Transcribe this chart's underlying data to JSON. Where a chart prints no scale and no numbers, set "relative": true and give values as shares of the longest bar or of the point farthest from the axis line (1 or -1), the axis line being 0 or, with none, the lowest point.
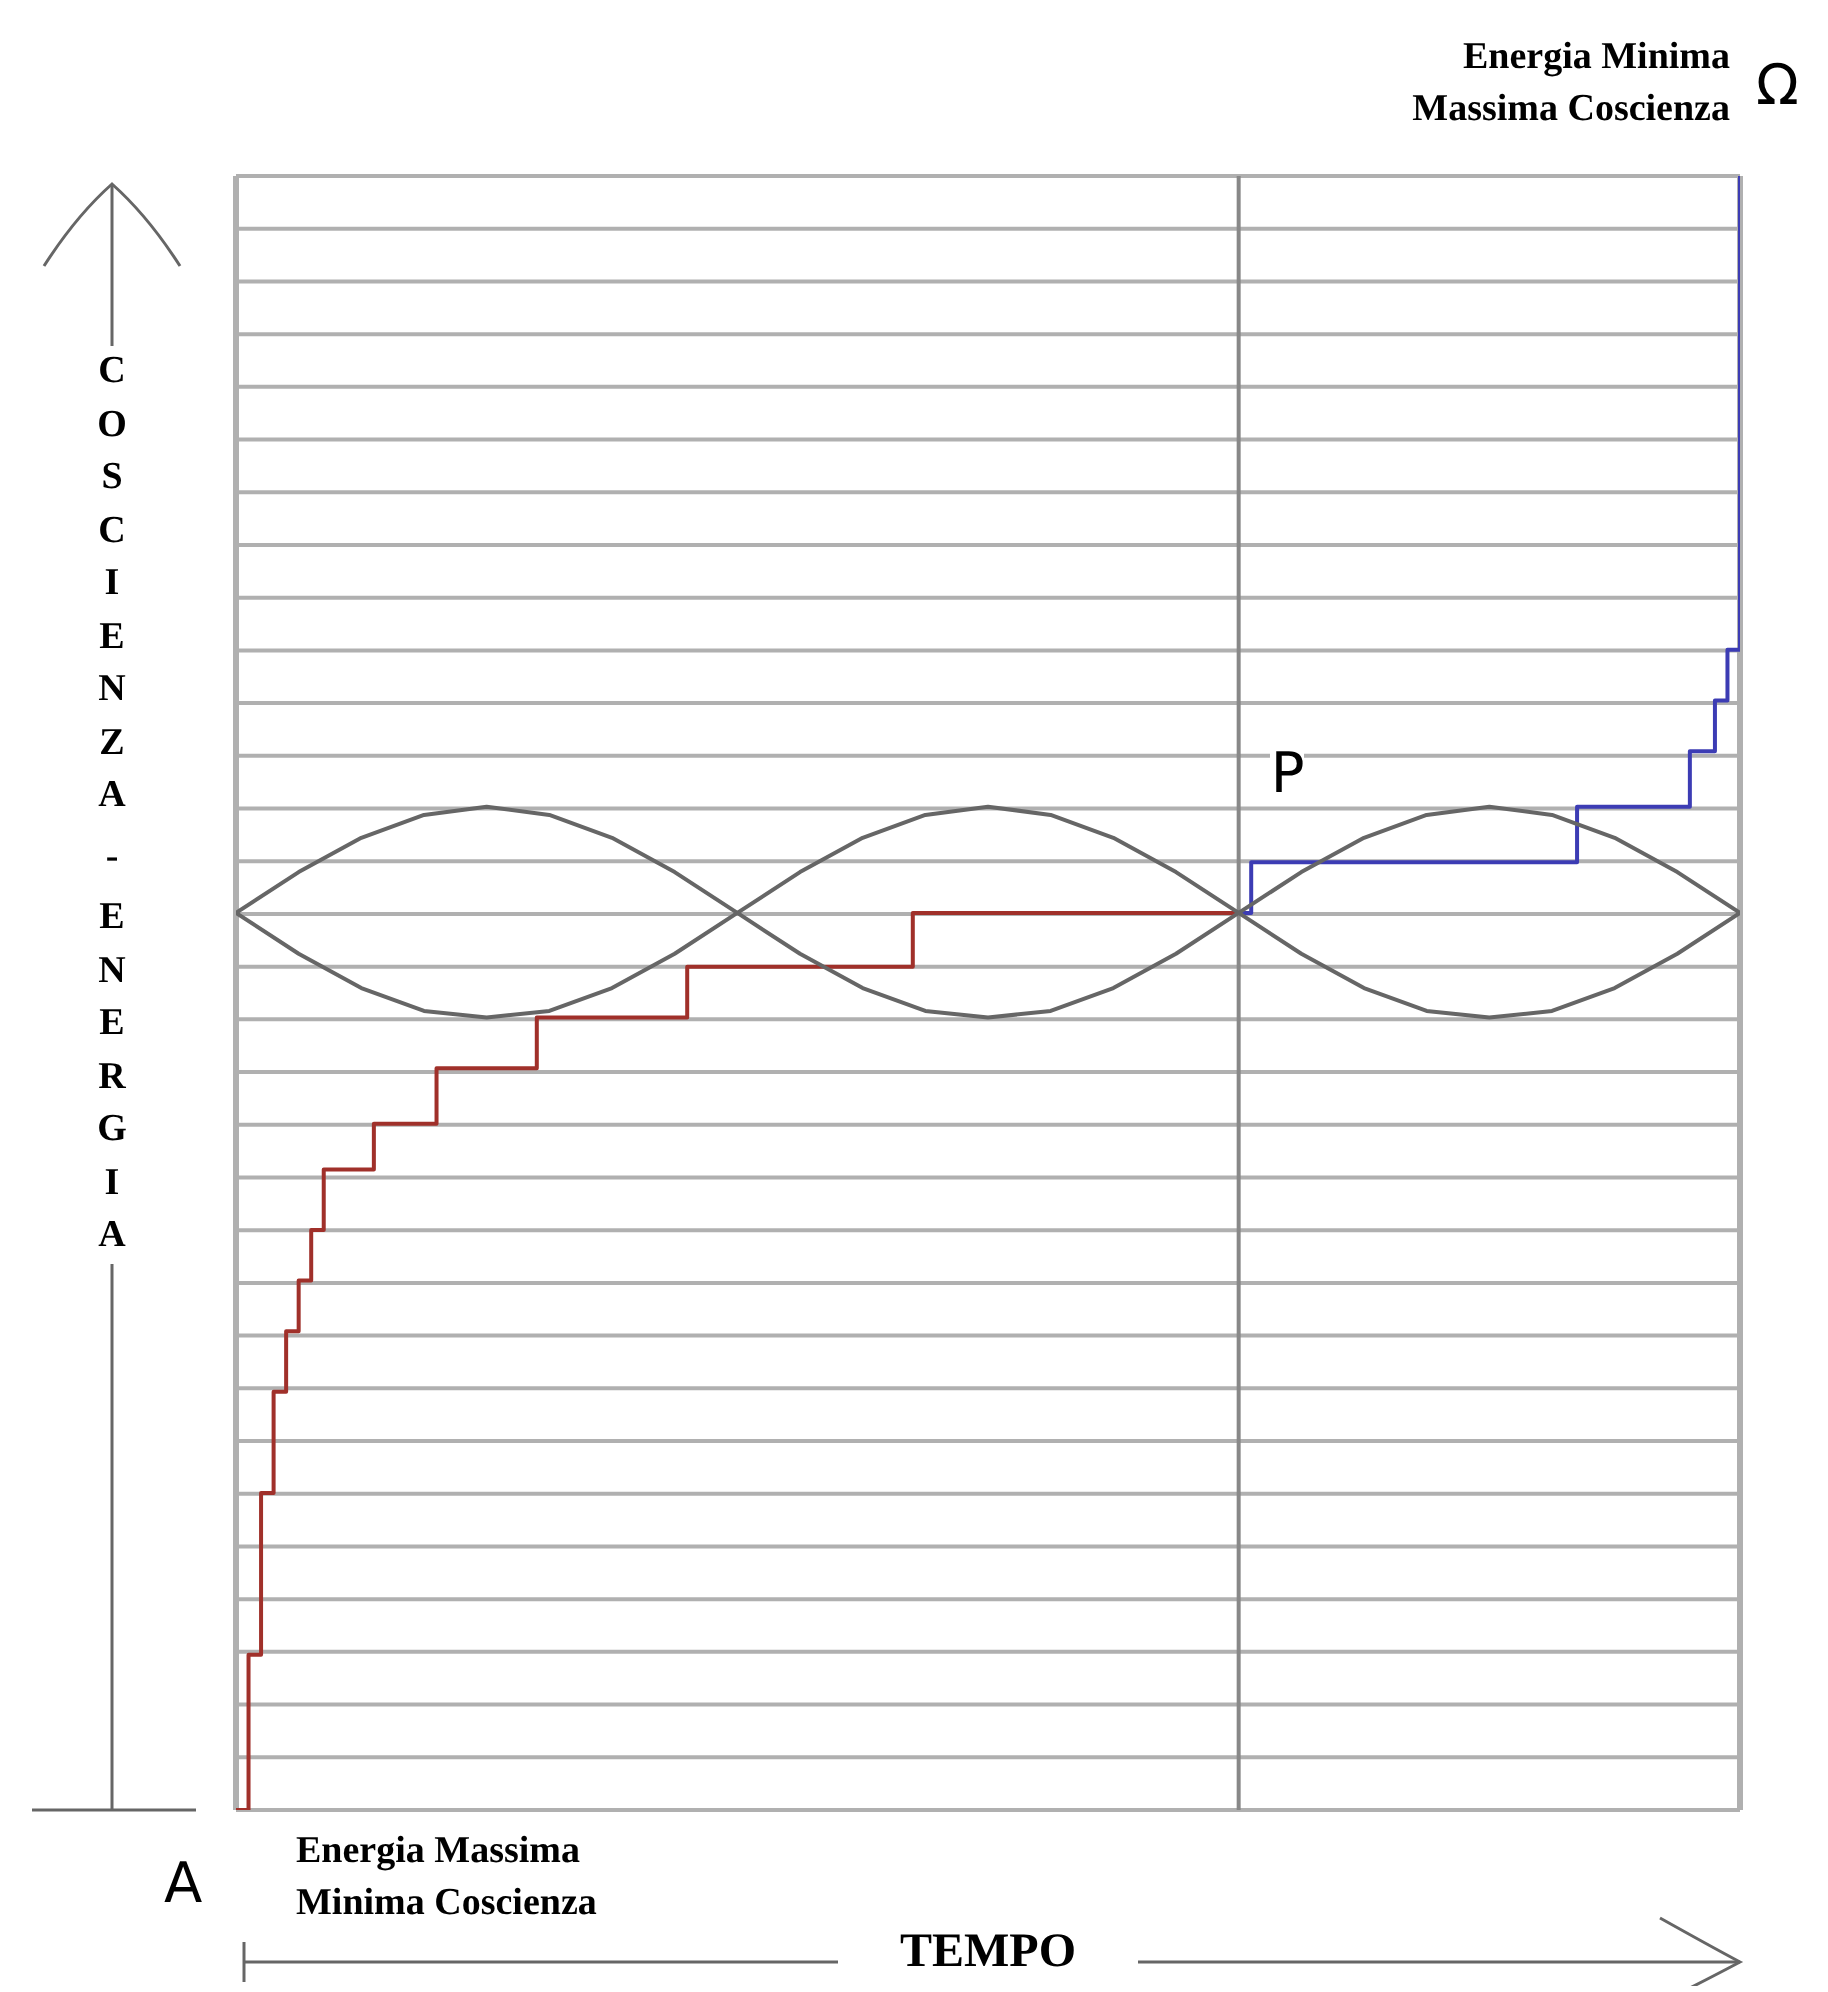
{
  "chart_data": {
    "type": "step",
    "relative": true,
    "xlabel": "TEMPO",
    "ylabel": "COSCIENZA - ENERGIA",
    "grid": "y",
    "marker": "none",
    "line_style": "solid",
    "categories": [
      null,
      null,
      null,
      null,
      null,
      null,
      null,
      null,
      null,
      null,
      null,
      null,
      null,
      null,
      null,
      null,
      null,
      null,
      null,
      null,
      null,
      null,
      null,
      null,
      null,
      null,
      null,
      null,
      null,
      null,
      null,
      null,
      null,
      null,
      null,
      null,
      null,
      null,
      null,
      null,
      null,
      null,
      null,
      null,
      null,
      null,
      null,
      null,
      null,
      null,
      null,
      null,
      null,
      null,
      null,
      null,
      null,
      null,
      null,
      null,
      null,
      null,
      null,
      null,
      null,
      null,
      null,
      null,
      null,
      null,
      null,
      null,
      null,
      null,
      null,
      null,
      null,
      null,
      null,
      null,
      null,
      null,
      null,
      null,
      null,
      null,
      null,
      null,
      null,
      null,
      null,
      null,
      null,
      null,
      null,
      null,
      null,
      null,
      null,
      null,
      null,
      null,
      null,
      null,
      null,
      null,
      null,
      null,
      null,
      null,
      null,
      null,
      null,
      null,
      null,
      null,
      null,
      null,
      null,
      null,
      null
    ],
    "series": [
      {
        "color": "#a0302a",
        "values": [
          0,
          0.095,
          0.194,
          0.256,
          0.293,
          0.324,
          0.355,
          0.392,
          null,
          null,
          null,
          0.42,
          null,
          null,
          null,
          null,
          0.454,
          null,
          null,
          null,
          null,
          null,
          null,
          null,
          0.485,
          null,
          null,
          null,
          null,
          null,
          null,
          null,
          null,
          null,
          null,
          null,
          0.516,
          null,
          null,
          null,
          null,
          null,
          null,
          null,
          null,
          null,
          null,
          null,
          null,
          null,
          null,
          null,
          null,
          null,
          0.549,
          null,
          null,
          null,
          null,
          null,
          null,
          null,
          null,
          null,
          null,
          null,
          null,
          null,
          null,
          null,
          null,
          null,
          null,
          null,
          null,
          null,
          null,
          null,
          null,
          null,
          0.549,
          null,
          null,
          null,
          null,
          null,
          null,
          null,
          null,
          null,
          null,
          null,
          null,
          null,
          null,
          null,
          null,
          null,
          null,
          null,
          null,
          null,
          null,
          null,
          null,
          null,
          null,
          null,
          null,
          null,
          null,
          null,
          null,
          null,
          null,
          null,
          null,
          null,
          null,
          null,
          null
        ]
      },
      {
        "color": "#3c3cb4",
        "values": [
          null,
          null,
          null,
          null,
          null,
          null,
          null,
          null,
          null,
          null,
          null,
          null,
          null,
          null,
          null,
          null,
          null,
          null,
          null,
          null,
          null,
          null,
          null,
          null,
          null,
          null,
          null,
          null,
          null,
          null,
          null,
          null,
          null,
          null,
          null,
          null,
          null,
          null,
          null,
          null,
          null,
          null,
          null,
          null,
          null,
          null,
          null,
          null,
          null,
          null,
          null,
          null,
          null,
          null,
          null,
          null,
          null,
          null,
          null,
          null,
          null,
          null,
          null,
          null,
          null,
          null,
          null,
          null,
          null,
          null,
          null,
          null,
          null,
          null,
          null,
          null,
          null,
          null,
          null,
          null,
          0.549,
          0.58,
          null,
          null,
          null,
          null,
          null,
          null,
          null,
          null,
          null,
          null,
          null,
          null,
          null,
          null,
          null,
          null,
          null,
          null,
          null,
          null,
          null,
          null,
          null,
          null,
          null,
          0.614,
          null,
          null,
          null,
          null,
          null,
          null,
          null,
          null,
          0.648,
          null,
          0.679,
          0.71,
          1.0
        ]
      },
      {
        "type": "line",
        "color": "#666666",
        "values": [
          0.549,
          null,
          null,
          null,
          null,
          0.574,
          null,
          null,
          null,
          null,
          0.595,
          null,
          null,
          null,
          null,
          0.609,
          null,
          null,
          null,
          null,
          0.614,
          null,
          null,
          null,
          null,
          0.609,
          null,
          null,
          null,
          null,
          0.595,
          null,
          null,
          null,
          null,
          0.574,
          null,
          null,
          null,
          null,
          0.549,
          null,
          null,
          null,
          null,
          0.574,
          null,
          null,
          null,
          null,
          0.595,
          null,
          null,
          null,
          null,
          0.609,
          null,
          null,
          null,
          null,
          0.614,
          null,
          null,
          null,
          null,
          0.609,
          null,
          null,
          null,
          null,
          0.595,
          null,
          null,
          null,
          null,
          0.574,
          null,
          null,
          null,
          null,
          0.549,
          null,
          null,
          null,
          null,
          0.574,
          null,
          null,
          null,
          null,
          0.595,
          null,
          null,
          null,
          null,
          0.609,
          null,
          null,
          null,
          null,
          0.614,
          null,
          null,
          null,
          null,
          0.609,
          null,
          null,
          null,
          null,
          0.595,
          null,
          null,
          null,
          null,
          0.574,
          null,
          null,
          null,
          null,
          0.549
        ]
      },
      {
        "type": "line",
        "color": "#666666",
        "values": [
          0.549,
          null,
          null,
          null,
          null,
          0.524,
          null,
          null,
          null,
          null,
          0.503,
          null,
          null,
          null,
          null,
          0.489,
          null,
          null,
          null,
          null,
          0.485,
          null,
          null,
          null,
          null,
          0.489,
          null,
          null,
          null,
          null,
          0.503,
          null,
          null,
          null,
          null,
          0.524,
          null,
          null,
          null,
          null,
          0.549,
          null,
          null,
          null,
          null,
          0.524,
          null,
          null,
          null,
          null,
          0.503,
          null,
          null,
          null,
          null,
          0.489,
          null,
          null,
          null,
          null,
          0.485,
          null,
          null,
          null,
          null,
          0.489,
          null,
          null,
          null,
          null,
          0.503,
          null,
          null,
          null,
          null,
          0.524,
          null,
          null,
          null,
          null,
          0.549,
          null,
          null,
          null,
          null,
          0.524,
          null,
          null,
          null,
          null,
          0.503,
          null,
          null,
          null,
          null,
          0.489,
          null,
          null,
          null,
          null,
          0.485,
          null,
          null,
          null,
          null,
          0.489,
          null,
          null,
          null,
          null,
          0.503,
          null,
          null,
          null,
          null,
          0.524,
          null,
          null,
          null,
          null,
          0.549
        ]
      }
    ],
    "annotations": [
      "A",
      "P",
      "Ω",
      "Energia Massima\nMinima Coscienza",
      "Energia Minima\nMassima Coscienza"
    ]
  }
}
